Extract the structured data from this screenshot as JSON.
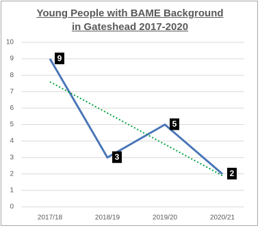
{
  "chart_data": {
    "type": "line",
    "title": "Young People with BAME Background in Gateshead 2017-2020",
    "categories": [
      "2017/18",
      "2018/19",
      "2019/20",
      "2020/21"
    ],
    "values": [
      9,
      3,
      5,
      2
    ],
    "color": "#4a76b8",
    "trendline": "linear",
    "trendline_color": "#00a03c",
    "ylim": [
      0,
      10
    ],
    "yticks": [
      0,
      1,
      2,
      3,
      4,
      5,
      6,
      7,
      8,
      9,
      10
    ],
    "grid": true
  }
}
